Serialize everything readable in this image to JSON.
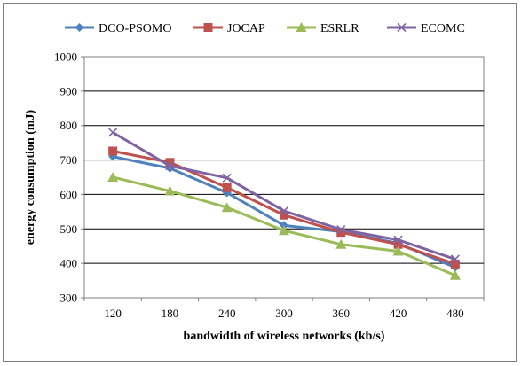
{
  "chart_data": {
    "type": "line",
    "title": "",
    "xlabel": "bandwidth of wireless networks (kb/s)",
    "ylabel": "energy consumption (mJ)",
    "categories": [
      "120",
      "180",
      "240",
      "300",
      "360",
      "420",
      "480"
    ],
    "ylim": [
      300,
      1000
    ],
    "yticks": [
      "300",
      "400",
      "500",
      "600",
      "700",
      "800",
      "900",
      "1000"
    ],
    "grid": true,
    "legend_position": "top",
    "series": [
      {
        "name": "DCO-PSOMO",
        "color": "#4f81bd",
        "marker": "diamond",
        "values": [
          710,
          676,
          605,
          510,
          492,
          458,
          388
        ]
      },
      {
        "name": "JOCAP",
        "color": "#c0504d",
        "marker": "square",
        "values": [
          726,
          693,
          620,
          540,
          490,
          455,
          398
        ]
      },
      {
        "name": "ESRLR",
        "color": "#9bbb59",
        "marker": "triangle",
        "values": [
          650,
          610,
          562,
          495,
          455,
          435,
          365
        ]
      },
      {
        "name": "ECOMC",
        "color": "#8064a2",
        "marker": "x",
        "values": [
          780,
          683,
          648,
          552,
          498,
          468,
          412
        ]
      }
    ]
  }
}
